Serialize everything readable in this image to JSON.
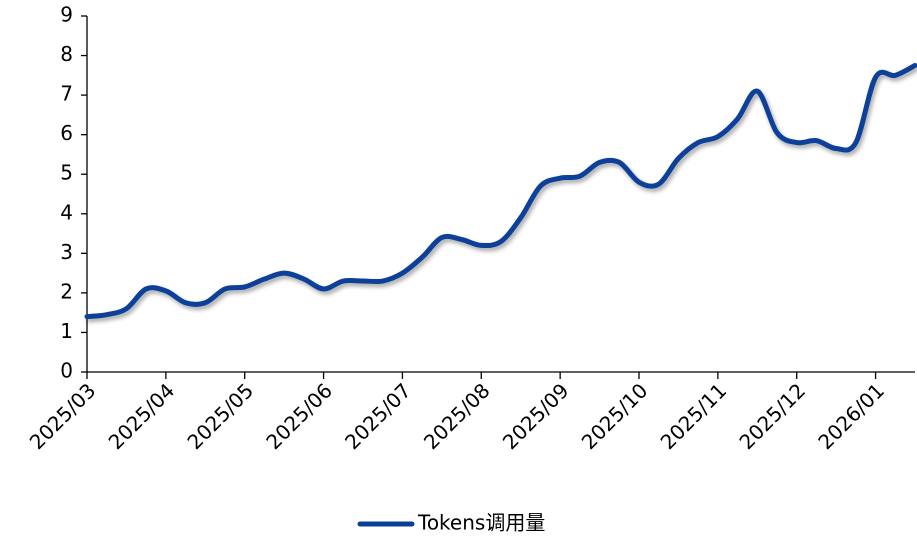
{
  "chart_data": {
    "type": "line",
    "categories": [
      "2025/03",
      null,
      null,
      null,
      "2025/04",
      null,
      null,
      null,
      "2025/05",
      null,
      null,
      null,
      "2025/06",
      null,
      null,
      null,
      "2025/07",
      null,
      null,
      null,
      "2025/08",
      null,
      null,
      null,
      "2025/09",
      null,
      null,
      null,
      "2025/10",
      null,
      null,
      null,
      "2025/11",
      null,
      null,
      null,
      "2025/12",
      null,
      null,
      null,
      "2026/01",
      null,
      null
    ],
    "series": [
      {
        "name": "Tokens调用量",
        "color": "#0a3f98",
        "values": [
          1.4,
          1.45,
          1.6,
          2.1,
          2.05,
          1.75,
          1.75,
          2.1,
          2.15,
          2.35,
          2.5,
          2.35,
          2.1,
          2.3,
          2.3,
          2.3,
          2.5,
          2.9,
          3.4,
          3.35,
          3.2,
          3.3,
          3.9,
          4.7,
          4.9,
          4.95,
          5.3,
          5.3,
          4.8,
          4.75,
          5.4,
          5.8,
          5.95,
          6.4,
          7.1,
          6.05,
          5.8,
          5.85,
          5.65,
          5.8,
          7.45,
          7.5,
          7.75
        ]
      }
    ],
    "ylim": [
      0,
      9
    ],
    "yticks": [
      0,
      1,
      2,
      3,
      4,
      5,
      6,
      7,
      8,
      9
    ],
    "legend": "bottom"
  }
}
